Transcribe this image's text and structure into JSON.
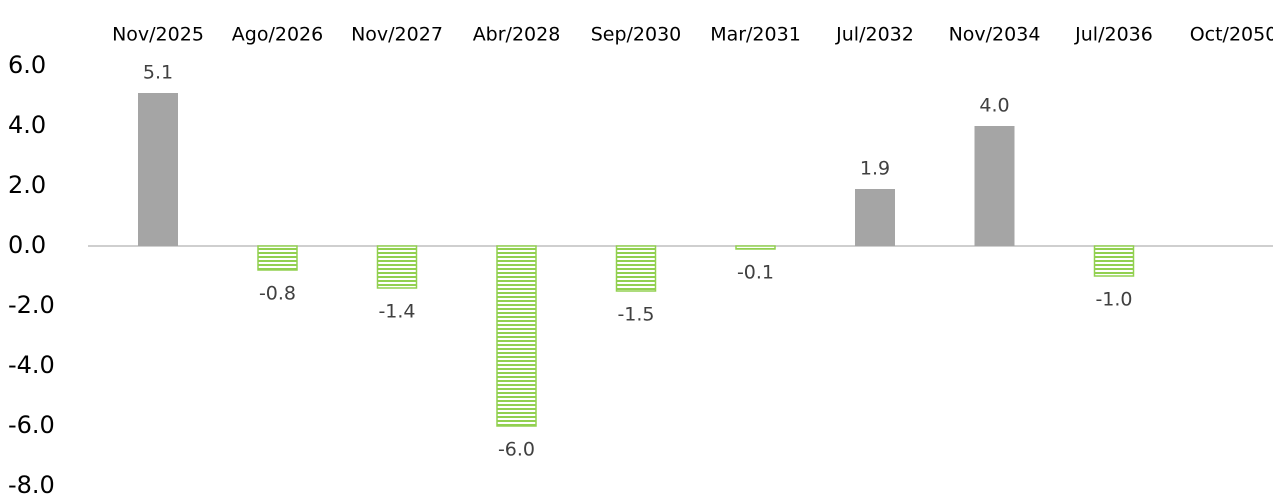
{
  "chart_data": {
    "type": "bar",
    "categories": [
      "Nov/2025",
      "Ago/2026",
      "Nov/2027",
      "Abr/2028",
      "Sep/2030",
      "Mar/2031",
      "Jul/2032",
      "Nov/2034",
      "Jul/2036",
      "Oct/2050"
    ],
    "values": [
      5.1,
      -0.8,
      -1.4,
      -6.0,
      -1.5,
      -0.1,
      1.9,
      4.0,
      -1.0,
      null
    ],
    "value_labels": [
      "5.1",
      "-0.8",
      "-1.4",
      "-6.0",
      "-1.5",
      "-0.1",
      "1.9",
      "4.0",
      "-1.0",
      null
    ],
    "colors": {
      "positive": "#a5a5a5",
      "negative": "#92d050"
    },
    "ylim": [
      -8,
      6
    ],
    "yticks": [
      {
        "value": 6,
        "label": "6.0"
      },
      {
        "value": 4,
        "label": "4.0"
      },
      {
        "value": 2,
        "label": "2.0"
      },
      {
        "value": 0,
        "label": "0.0"
      },
      {
        "value": -2,
        "label": "-2.0"
      },
      {
        "value": -4,
        "label": "-4.0"
      },
      {
        "value": -6,
        "label": "-6.0"
      },
      {
        "value": -8,
        "label": "-8.0"
      }
    ],
    "grid": false
  }
}
